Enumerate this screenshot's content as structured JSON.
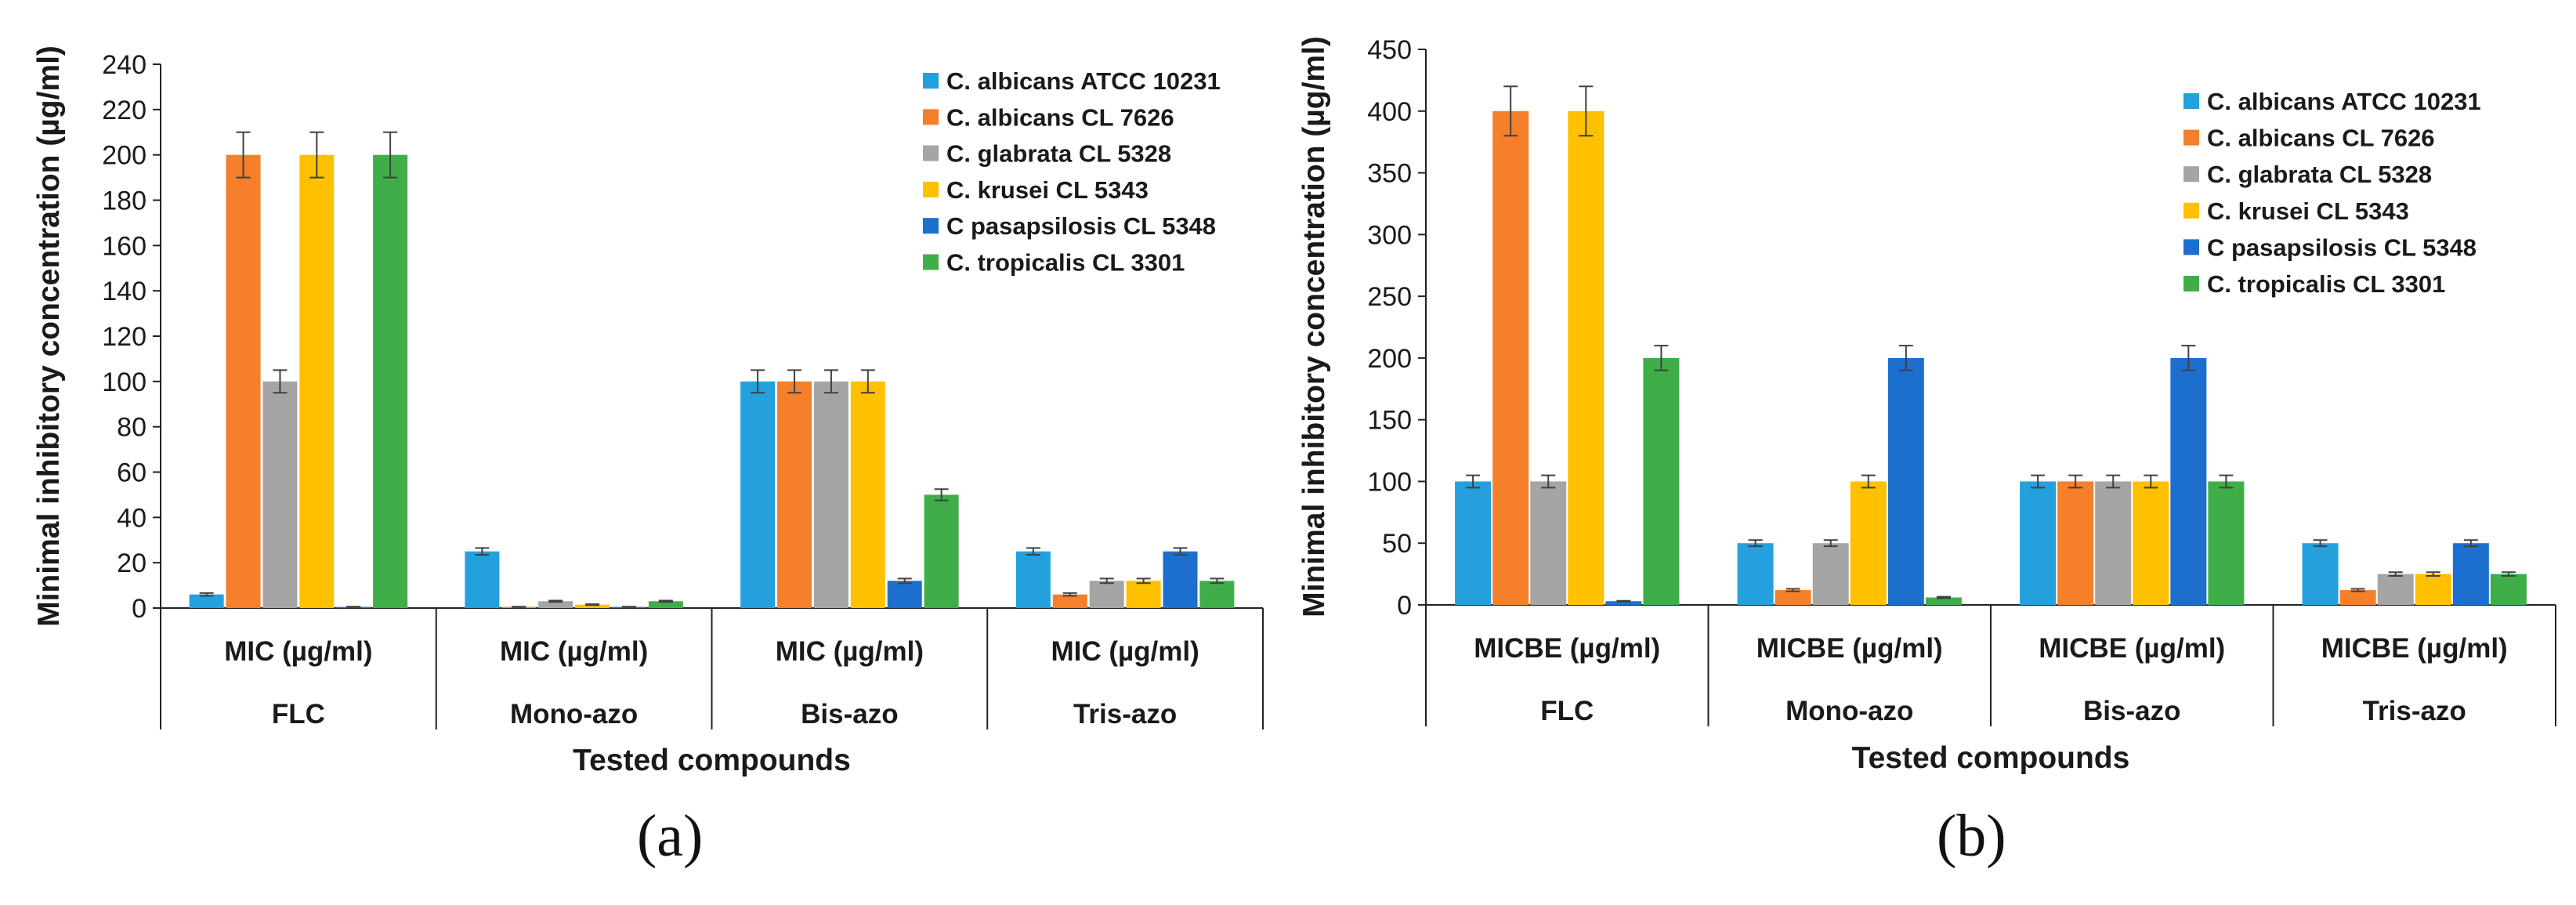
{
  "chart_data": [
    {
      "type": "bar",
      "panel_label": "(a)",
      "panel_letter": "a",
      "ylabel": "Minimal inhibitory concentration (µg/ml)",
      "xlabel": "Tested compounds",
      "ylim": [
        0,
        240
      ],
      "ytick_step": 20,
      "yticks": [
        "0",
        "20",
        "40",
        "60",
        "80",
        "100",
        "120",
        "140",
        "160",
        "180",
        "200",
        "220",
        "240"
      ],
      "groups": [
        "FLC",
        "Mono-azo",
        "Bis-azo",
        "Tris-azo"
      ],
      "categories": [
        "MIC (µg/ml)",
        "MIC (µg/ml)",
        "MIC (µg/ml)",
        "MIC (µg/ml)"
      ],
      "legend_position": "top-right",
      "series": [
        {
          "name": "C. albicans ATCC 10231",
          "color": "#24a0dc",
          "values": [
            6,
            25,
            100,
            25
          ],
          "errors": [
            0.6,
            1.5,
            5,
            1.5
          ]
        },
        {
          "name": "C. albicans CL 7626",
          "color": "#f57f2a",
          "values": [
            200,
            0.5,
            100,
            6
          ],
          "errors": [
            10,
            0.1,
            5,
            0.6
          ]
        },
        {
          "name": "C. glabrata CL 5328",
          "color": "#a5a5a5",
          "values": [
            100,
            3,
            100,
            12
          ],
          "errors": [
            5,
            0.3,
            5,
            1
          ]
        },
        {
          "name": "C. krusei CL 5343",
          "color": "#ffc000",
          "values": [
            200,
            1.5,
            100,
            12
          ],
          "errors": [
            10,
            0.2,
            5,
            1
          ]
        },
        {
          "name": "C pasapsilosis CL 5348",
          "color": "#1d6fce",
          "values": [
            0.5,
            0.5,
            12,
            25
          ],
          "errors": [
            0.1,
            0.1,
            1,
            1.5
          ]
        },
        {
          "name": "C. tropicalis CL 3301",
          "color": "#3fae49",
          "values": [
            200,
            3,
            50,
            12
          ],
          "errors": [
            10,
            0.3,
            2.5,
            1
          ]
        }
      ]
    },
    {
      "type": "bar",
      "panel_label": "(b)",
      "panel_letter": "b",
      "ylabel": "Minimal inhibitory concentration (µg/ml)",
      "xlabel": "Tested compounds",
      "ylim": [
        0,
        450
      ],
      "ytick_step": 50,
      "yticks": [
        "0",
        "50",
        "100",
        "150",
        "200",
        "250",
        "300",
        "350",
        "400",
        "450"
      ],
      "groups": [
        "FLC",
        "Mono-azo",
        "Bis-azo",
        "Tris-azo"
      ],
      "categories": [
        "MICBE (µg/ml)",
        "MICBE (µg/ml)",
        "MICBE (µg/ml)",
        "MICBE (µg/ml)"
      ],
      "legend_position": "top-right",
      "series": [
        {
          "name": "C. albicans ATCC 10231",
          "color": "#24a0dc",
          "values": [
            100,
            50,
            100,
            50
          ],
          "errors": [
            5,
            2.5,
            5,
            2.5
          ]
        },
        {
          "name": "C. albicans CL 7626",
          "color": "#f57f2a",
          "values": [
            400,
            12,
            100,
            12
          ],
          "errors": [
            20,
            1,
            5,
            1
          ]
        },
        {
          "name": "C. glabrata CL 5328",
          "color": "#a5a5a5",
          "values": [
            100,
            50,
            100,
            25
          ],
          "errors": [
            5,
            2.5,
            5,
            1.5
          ]
        },
        {
          "name": "C. krusei CL 5343",
          "color": "#ffc000",
          "values": [
            400,
            100,
            100,
            25
          ],
          "errors": [
            20,
            5,
            5,
            1.5
          ]
        },
        {
          "name": "C pasapsilosis CL 5348",
          "color": "#1d6fce",
          "values": [
            3,
            200,
            200,
            50
          ],
          "errors": [
            0.3,
            10,
            10,
            2.5
          ]
        },
        {
          "name": "C. tropicalis CL 3301",
          "color": "#3fae49",
          "values": [
            200,
            6,
            100,
            25
          ],
          "errors": [
            10,
            0.6,
            5,
            1.5
          ]
        }
      ]
    }
  ]
}
